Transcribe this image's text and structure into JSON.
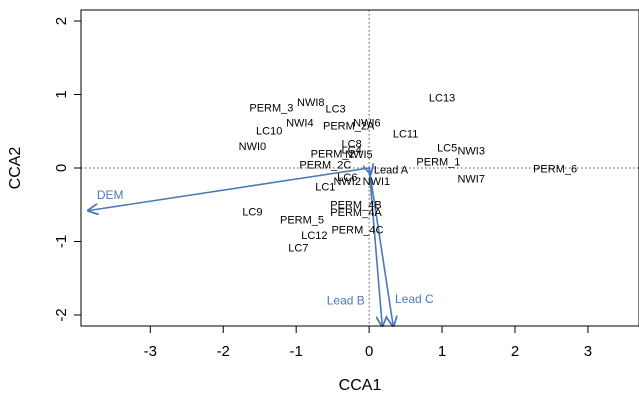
{
  "chart_data": {
    "type": "scatter",
    "title": "",
    "xlabel": "CCA1",
    "ylabel": "CCA2",
    "xlim": [
      -3.95,
      3.7
    ],
    "ylim": [
      -2.15,
      2.15
    ],
    "x_ticks": [
      -3,
      -2,
      -1,
      0,
      1,
      2,
      3
    ],
    "y_ticks": [
      -2,
      -1,
      0,
      1,
      2
    ],
    "reference_lines": {
      "x": 0,
      "y": 0,
      "style": "dotted"
    },
    "grid": false,
    "colors": {
      "arrow": "#4a7ab5",
      "points": "#000000",
      "frame": "#000000"
    },
    "sites": [
      {
        "label": "NWI8",
        "x": -0.8,
        "y": 0.9
      },
      {
        "label": "PERM_3",
        "x": -1.34,
        "y": 0.82
      },
      {
        "label": "LC3",
        "x": -0.46,
        "y": 0.81
      },
      {
        "label": "LC13",
        "x": 1.0,
        "y": 0.96
      },
      {
        "label": "NWI4",
        "x": -0.95,
        "y": 0.62
      },
      {
        "label": "NWI6",
        "x": -0.03,
        "y": 0.62
      },
      {
        "label": "PERM_2A",
        "x": -0.28,
        "y": 0.58
      },
      {
        "label": "LC10",
        "x": -1.37,
        "y": 0.51
      },
      {
        "label": "LC11",
        "x": 0.5,
        "y": 0.47
      },
      {
        "label": "NWI0",
        "x": -1.6,
        "y": 0.3
      },
      {
        "label": "LC8",
        "x": -0.24,
        "y": 0.33
      },
      {
        "label": "LC5",
        "x": 1.07,
        "y": 0.28
      },
      {
        "label": "NWI3",
        "x": 1.4,
        "y": 0.24
      },
      {
        "label": "PERM_2",
        "x": -0.5,
        "y": 0.2
      },
      {
        "label": "LC4",
        "x": -0.24,
        "y": 0.25
      },
      {
        "label": "NWI5",
        "x": -0.14,
        "y": 0.19
      },
      {
        "label": "PERM_1",
        "x": 0.95,
        "y": 0.09
      },
      {
        "label": "PERM_2C",
        "x": -0.6,
        "y": 0.05
      },
      {
        "label": "Lead A",
        "x": 0.3,
        "y": -0.02,
        "color": "#4a7ab5"
      },
      {
        "label": "PERM_6",
        "x": 2.55,
        "y": -0.01
      },
      {
        "label": "LC6",
        "x": -0.3,
        "y": -0.12
      },
      {
        "label": "NWI2",
        "x": -0.3,
        "y": -0.18
      },
      {
        "label": "NWI1",
        "x": 0.1,
        "y": -0.18
      },
      {
        "label": "NWI7",
        "x": 1.4,
        "y": -0.14
      },
      {
        "label": "LC1",
        "x": -0.6,
        "y": -0.25
      },
      {
        "label": "PERM_4B",
        "x": -0.18,
        "y": -0.5
      },
      {
        "label": "PERM_4A",
        "x": -0.18,
        "y": -0.6
      },
      {
        "label": "LC9",
        "x": -1.6,
        "y": -0.59
      },
      {
        "label": "PERM_5",
        "x": -0.92,
        "y": -0.7
      },
      {
        "label": "PERM_4C",
        "x": -0.16,
        "y": -0.84
      },
      {
        "label": "LC12",
        "x": -0.75,
        "y": -0.91
      },
      {
        "label": "LC7",
        "x": -0.97,
        "y": -1.08
      }
    ],
    "arrows": [
      {
        "label": "DEM",
        "x": -3.85,
        "y": -0.58,
        "label_x": -3.55,
        "label_y": -0.42
      },
      {
        "label": "Lead B",
        "x": 0.18,
        "y": -2.15,
        "label_x": -0.32,
        "label_y": -1.86
      },
      {
        "label": "Lead C",
        "x": 0.33,
        "y": -2.15,
        "label_x": 0.62,
        "label_y": -1.84
      },
      {
        "label": "Lead A",
        "x": 0.02,
        "y": -0.08
      }
    ]
  }
}
